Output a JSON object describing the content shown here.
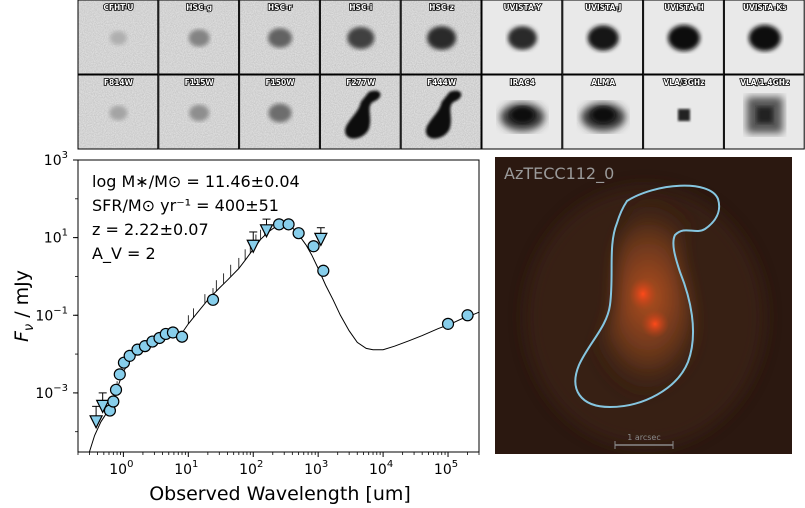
{
  "stamps": {
    "row1": [
      {
        "label": "CFHT-U",
        "blob": 0.25
      },
      {
        "label": "HSC-g",
        "blob": 0.45
      },
      {
        "label": "HSC-r",
        "blob": 0.6
      },
      {
        "label": "HSC-i",
        "blob": 0.75
      },
      {
        "label": "HSC-z",
        "blob": 0.85
      },
      {
        "label": "UVISTA-Y",
        "blob": 0.85
      },
      {
        "label": "UVISTA-J",
        "blob": 0.95
      },
      {
        "label": "UVISTA-H",
        "blob": 1.0
      },
      {
        "label": "UVISTA-Ks",
        "blob": 1.0
      }
    ],
    "row2": [
      {
        "label": "F814W",
        "blob": 0.3
      },
      {
        "label": "F115W",
        "blob": 0.4
      },
      {
        "label": "F150W",
        "blob": 0.55
      },
      {
        "label": "F277W",
        "blob": 1.0
      },
      {
        "label": "F444W",
        "blob": 1.0
      },
      {
        "label": "IRAC4",
        "blob": 0.75
      },
      {
        "label": "ALMA",
        "blob": 0.9
      },
      {
        "label": "VLA/3GHz",
        "blob": 1.0
      },
      {
        "label": "VLA/1.4GHz",
        "blob": 0.7
      }
    ]
  },
  "chart_data": {
    "type": "scatter",
    "xlabel": "Observed Wavelength [um]",
    "ylabel_main": "F",
    "ylabel_sub": "ν",
    "ylabel_unit": " / mJy",
    "xscale": "log",
    "yscale": "log",
    "xlim": [
      0.2,
      300000
    ],
    "ylim": [
      3e-05,
      1000
    ],
    "x_ticks": [
      {
        "v": 1,
        "base": "10",
        "exp": "0"
      },
      {
        "v": 10,
        "base": "10",
        "exp": "1"
      },
      {
        "v": 100,
        "base": "10",
        "exp": "2"
      },
      {
        "v": 1000,
        "base": "10",
        "exp": "3"
      },
      {
        "v": 10000,
        "base": "10",
        "exp": "4"
      },
      {
        "v": 100000,
        "base": "10",
        "exp": "5"
      }
    ],
    "y_ticks": [
      {
        "v": 0.001,
        "base": "10",
        "exp": "−3"
      },
      {
        "v": 0.1,
        "base": "10",
        "exp": "−1"
      },
      {
        "v": 10,
        "base": "10",
        "exp": "1"
      },
      {
        "v": 1000,
        "base": "10",
        "exp": "3"
      }
    ],
    "annotations": [
      "log M∗/M⊙ = 11.46±0.04",
      "SFR/M⊙ yr⁻¹ = 400±51",
      "z = 2.22±0.07",
      "A_V = 2"
    ],
    "detections": [
      {
        "x": 0.62,
        "y": 0.00035
      },
      {
        "x": 0.7,
        "y": 0.0006
      },
      {
        "x": 0.77,
        "y": 0.0012
      },
      {
        "x": 0.88,
        "y": 0.003
      },
      {
        "x": 1.02,
        "y": 0.006
      },
      {
        "x": 1.25,
        "y": 0.009
      },
      {
        "x": 1.65,
        "y": 0.013
      },
      {
        "x": 2.15,
        "y": 0.016
      },
      {
        "x": 2.8,
        "y": 0.021
      },
      {
        "x": 3.6,
        "y": 0.026
      },
      {
        "x": 4.5,
        "y": 0.033
      },
      {
        "x": 5.8,
        "y": 0.036
      },
      {
        "x": 8.0,
        "y": 0.028
      },
      {
        "x": 24,
        "y": 0.25
      },
      {
        "x": 250,
        "y": 22
      },
      {
        "x": 350,
        "y": 22
      },
      {
        "x": 500,
        "y": 13
      },
      {
        "x": 850,
        "y": 6
      },
      {
        "x": 1200,
        "y": 1.4
      },
      {
        "x": 100000,
        "y": 0.06
      },
      {
        "x": 200000,
        "y": 0.1
      }
    ],
    "upper_limits": [
      {
        "x": 0.38,
        "y": 0.00018,
        "err": 0.00045
      },
      {
        "x": 0.48,
        "y": 0.00045,
        "err": 0.001
      },
      {
        "x": 100,
        "y": 6,
        "err": 14
      },
      {
        "x": 160,
        "y": 15,
        "err": 30
      },
      {
        "x": 1100,
        "y": 9,
        "err": 18
      }
    ],
    "model_sed": [
      [
        0.3,
        3e-05
      ],
      [
        0.36,
        8e-05
      ],
      [
        0.45,
        0.00018
      ],
      [
        0.55,
        0.0003
      ],
      [
        0.65,
        0.0005
      ],
      [
        0.75,
        0.0009
      ],
      [
        0.85,
        0.0017
      ],
      [
        1.0,
        0.0035
      ],
      [
        1.2,
        0.006
      ],
      [
        1.5,
        0.009
      ],
      [
        2.0,
        0.014
      ],
      [
        2.5,
        0.018
      ],
      [
        3.0,
        0.022
      ],
      [
        4.0,
        0.028
      ],
      [
        5.0,
        0.033
      ],
      [
        6.0,
        0.034
      ],
      [
        7.0,
        0.032
      ],
      [
        8.0,
        0.035
      ],
      [
        10,
        0.06
      ],
      [
        14,
        0.12
      ],
      [
        20,
        0.25
      ],
      [
        30,
        0.5
      ],
      [
        40,
        0.8
      ],
      [
        60,
        1.6
      ],
      [
        80,
        3
      ],
      [
        100,
        5
      ],
      [
        130,
        9
      ],
      [
        170,
        14
      ],
      [
        220,
        19
      ],
      [
        270,
        22
      ],
      [
        320,
        22
      ],
      [
        400,
        18
      ],
      [
        500,
        12
      ],
      [
        650,
        6.5
      ],
      [
        800,
        3.5
      ],
      [
        1000,
        1.6
      ],
      [
        1300,
        0.6
      ],
      [
        1700,
        0.25
      ],
      [
        2200,
        0.1
      ],
      [
        3000,
        0.04
      ],
      [
        4000,
        0.02
      ],
      [
        5500,
        0.014
      ],
      [
        7000,
        0.013
      ],
      [
        10000,
        0.013
      ],
      [
        15000,
        0.016
      ],
      [
        25000,
        0.022
      ],
      [
        40000,
        0.03
      ],
      [
        70000,
        0.045
      ],
      [
        110000,
        0.06
      ],
      [
        160000,
        0.08
      ],
      [
        230000,
        0.1
      ],
      [
        300000,
        0.12
      ]
    ],
    "emission_lines": [
      {
        "x": 0.58,
        "h": 0.0003
      },
      {
        "x": 0.65,
        "h": 0.0004
      },
      {
        "x": 0.8,
        "h": 0.002
      },
      {
        "x": 1.0,
        "h": 0.003
      },
      {
        "x": 1.15,
        "h": 0.004
      },
      {
        "x": 1.6,
        "h": 0.006
      },
      {
        "x": 10,
        "h": 0.1
      },
      {
        "x": 12,
        "h": 0.15
      },
      {
        "x": 18,
        "h": 0.35
      },
      {
        "x": 24,
        "h": 0.5
      },
      {
        "x": 27,
        "h": 0.8
      },
      {
        "x": 35,
        "h": 1.2
      },
      {
        "x": 45,
        "h": 2
      },
      {
        "x": 60,
        "h": 3
      },
      {
        "x": 75,
        "h": 5
      },
      {
        "x": 90,
        "h": 8
      },
      {
        "x": 110,
        "h": 12
      },
      {
        "x": 130,
        "h": 16
      },
      {
        "x": 150,
        "h": 22
      },
      {
        "x": 300,
        "h": 25
      }
    ]
  },
  "image_panel": {
    "source_name": "AzTECC112_0",
    "scale_label": "1 arcsec",
    "contour_color": "#86c6e0",
    "background": "#2b1810"
  },
  "colors": {
    "marker_fill": "#87ceeb",
    "marker_edge": "#1a1a1a",
    "model_line": "#000000"
  }
}
